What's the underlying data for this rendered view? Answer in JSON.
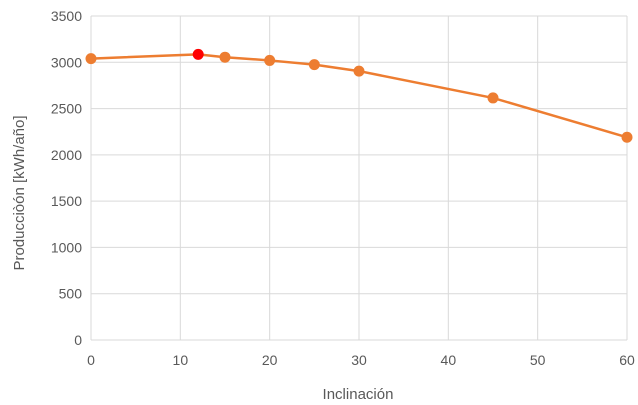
{
  "chart_data": {
    "type": "scatter",
    "title": "",
    "xlabel": "Inclinación",
    "ylabel": "Producciòón [kWh/año]",
    "xlim": [
      0,
      60
    ],
    "ylim": [
      0,
      3500
    ],
    "xticks": [
      0,
      10,
      20,
      30,
      40,
      50,
      60
    ],
    "yticks": [
      0,
      500,
      1000,
      1500,
      2000,
      2500,
      3000,
      3500
    ],
    "grid": "both",
    "legend": "none",
    "series": [
      {
        "x": [
          0,
          12,
          15,
          20,
          25,
          30,
          45,
          60
        ],
        "y": [
          3040,
          3085,
          3055,
          3020,
          2975,
          2905,
          2615,
          2190
        ],
        "color": "#ED7D31",
        "highlight_index": 1,
        "highlight_color": "#FF0000"
      }
    ]
  }
}
